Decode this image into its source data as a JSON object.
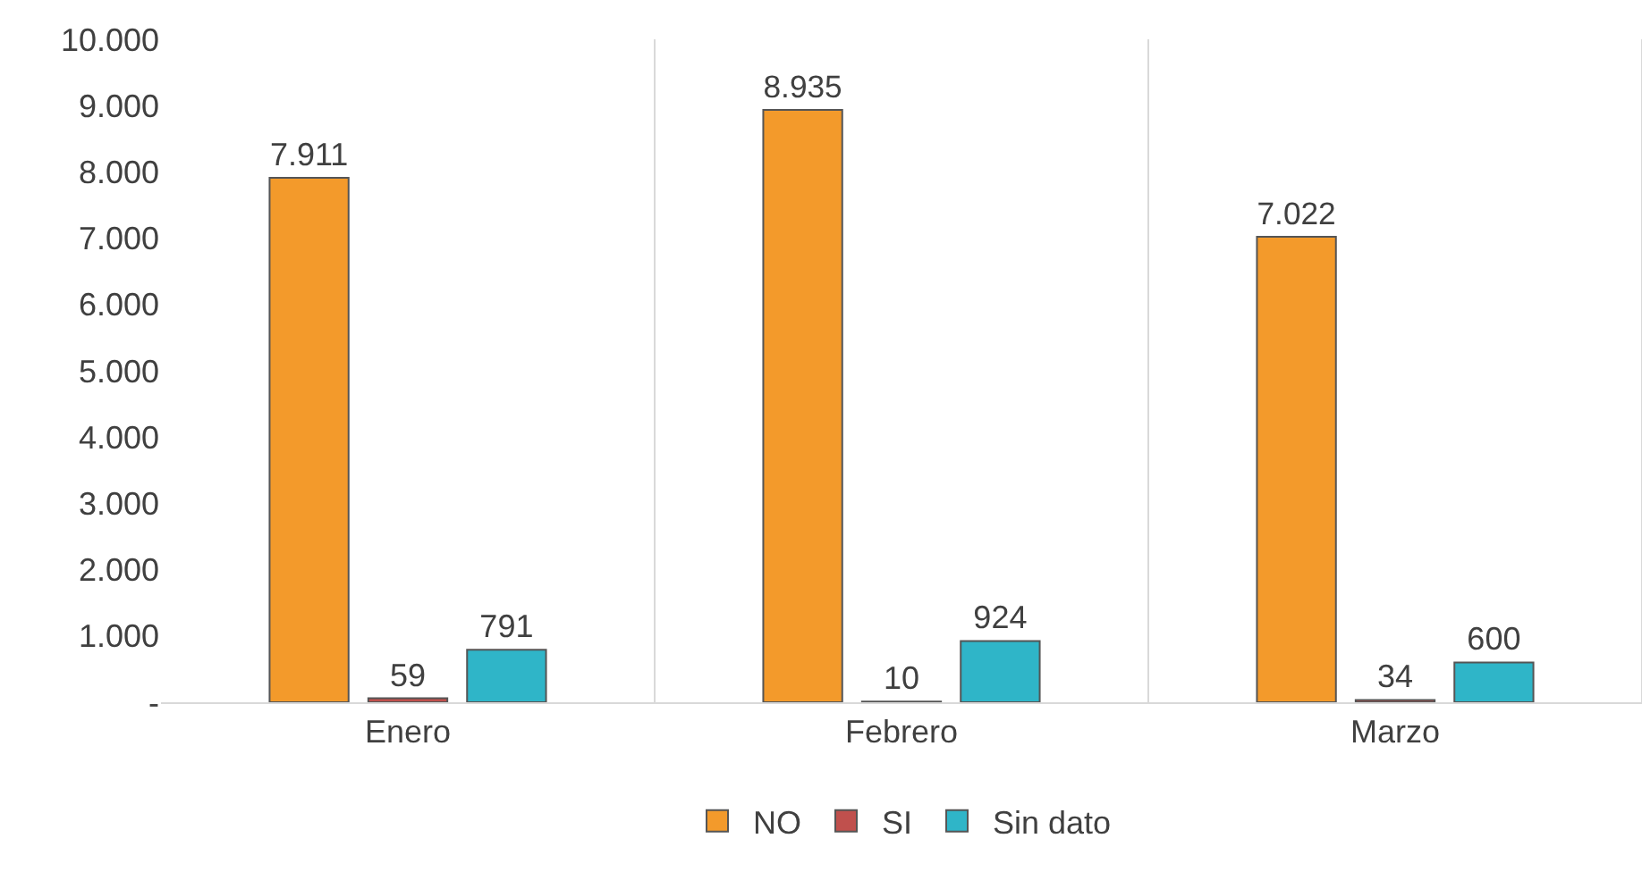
{
  "chart_data": {
    "type": "bar",
    "categories": [
      "Enero",
      "Febrero",
      "Marzo"
    ],
    "series": [
      {
        "name": "NO",
        "color": "#f39a2b",
        "values": [
          7911,
          8935,
          7022
        ],
        "value_labels": [
          "7.911",
          "8.935",
          "7.022"
        ]
      },
      {
        "name": "SI",
        "color": "#c0504d",
        "values": [
          59,
          10,
          34
        ],
        "value_labels": [
          "59",
          "10",
          "34"
        ]
      },
      {
        "name": "Sin dato",
        "color": "#2fb5c8",
        "values": [
          791,
          924,
          600
        ],
        "value_labels": [
          "791",
          "924",
          "600"
        ]
      }
    ],
    "ylim": [
      0,
      10000
    ],
    "yticks": [
      {
        "value": 0,
        "label": "-"
      },
      {
        "value": 1000,
        "label": "1.000"
      },
      {
        "value": 2000,
        "label": "2.000"
      },
      {
        "value": 3000,
        "label": "3.000"
      },
      {
        "value": 4000,
        "label": "4.000"
      },
      {
        "value": 5000,
        "label": "5.000"
      },
      {
        "value": 6000,
        "label": "6.000"
      },
      {
        "value": 7000,
        "label": "7.000"
      },
      {
        "value": 8000,
        "label": "8.000"
      },
      {
        "value": 9000,
        "label": "9.000"
      },
      {
        "value": 10000,
        "label": "10.000"
      }
    ],
    "grid": "x",
    "legend": "bottom"
  }
}
